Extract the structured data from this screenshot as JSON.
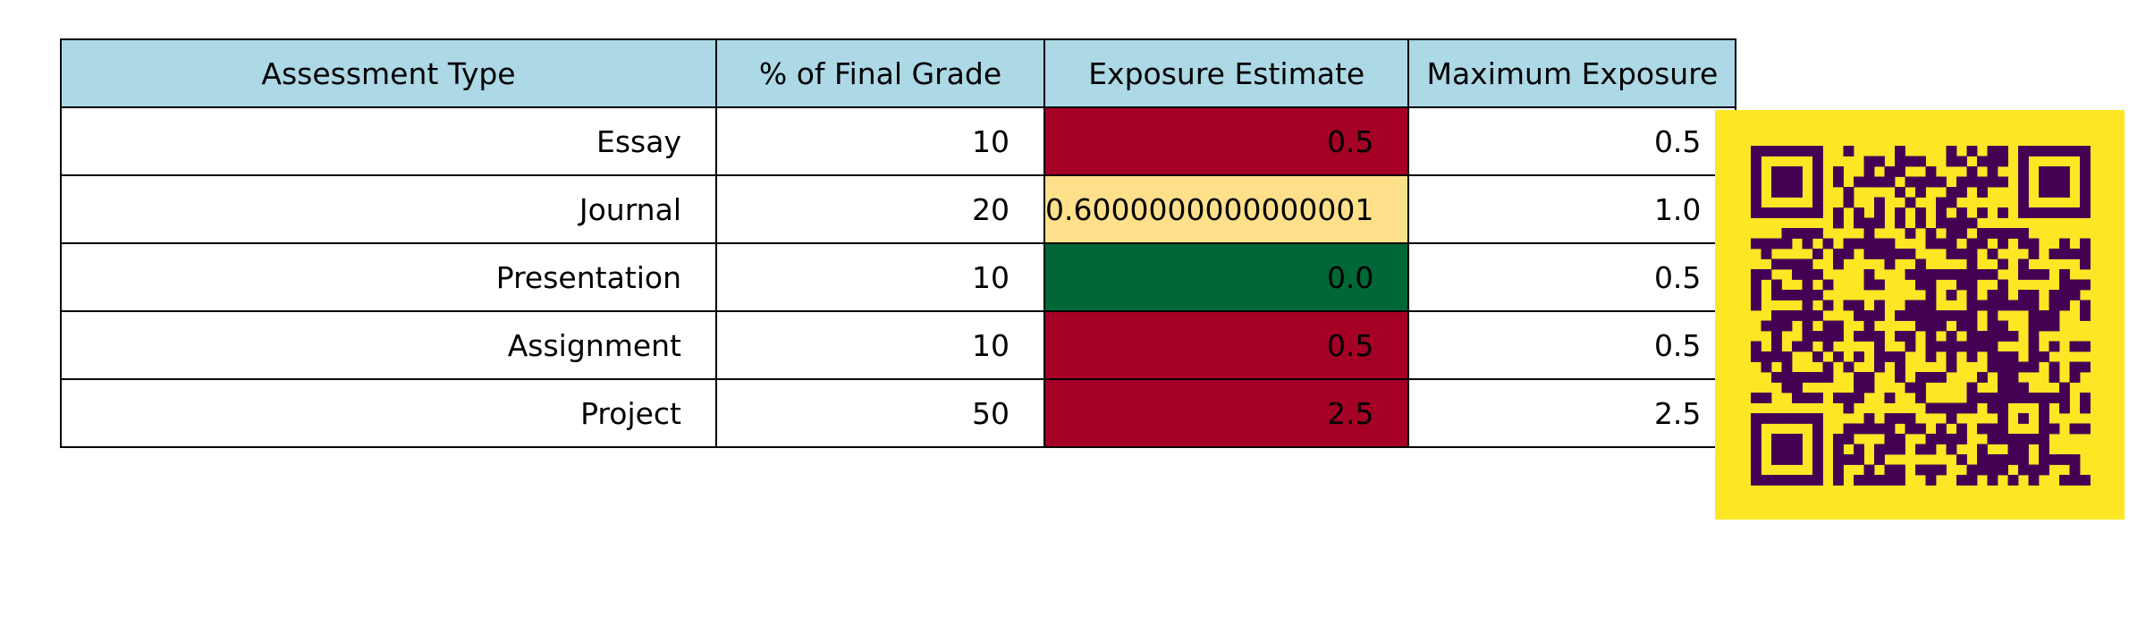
{
  "chart_data": {
    "type": "table",
    "columns": [
      "Assessment Type",
      "% of Final Grade",
      "Exposure Estimate",
      "Maximum Exposure"
    ],
    "header_color": "#add8e6",
    "rows": [
      {
        "assessment": "Essay",
        "percent": "10",
        "exposure": "0.5",
        "max": "0.5",
        "exposure_color": "#a50026"
      },
      {
        "assessment": "Journal",
        "percent": "20",
        "exposure": "0.6000000000000001",
        "max": "1.0",
        "exposure_color": "#fee08b"
      },
      {
        "assessment": "Presentation",
        "percent": "10",
        "exposure": "0.0",
        "max": "0.5",
        "exposure_color": "#006837"
      },
      {
        "assessment": "Assignment",
        "percent": "10",
        "exposure": "0.5",
        "max": "0.5",
        "exposure_color": "#a50026"
      },
      {
        "assessment": "Project",
        "percent": "50",
        "exposure": "2.5",
        "max": "2.5",
        "exposure_color": "#a50026"
      }
    ]
  },
  "qr_code": {
    "background_color": "#fde725",
    "module_color": "#440154"
  }
}
